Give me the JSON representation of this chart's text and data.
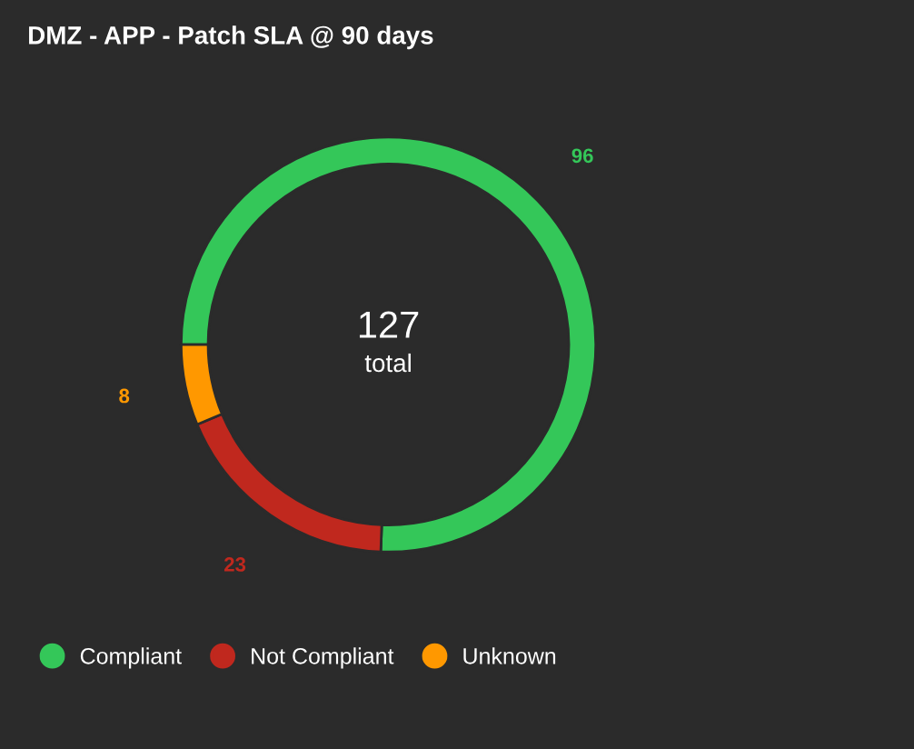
{
  "chart_data": {
    "type": "donut",
    "title": "DMZ - APP - Patch SLA @ 90 days",
    "categories": [
      "Compliant",
      "Not Compliant",
      "Unknown"
    ],
    "values": [
      96,
      23,
      8
    ],
    "colors": [
      "#34c759",
      "#c0281e",
      "#ff9800"
    ],
    "data_labels": true,
    "annotations": [
      "127",
      "total"
    ],
    "legend": "bottom"
  }
}
